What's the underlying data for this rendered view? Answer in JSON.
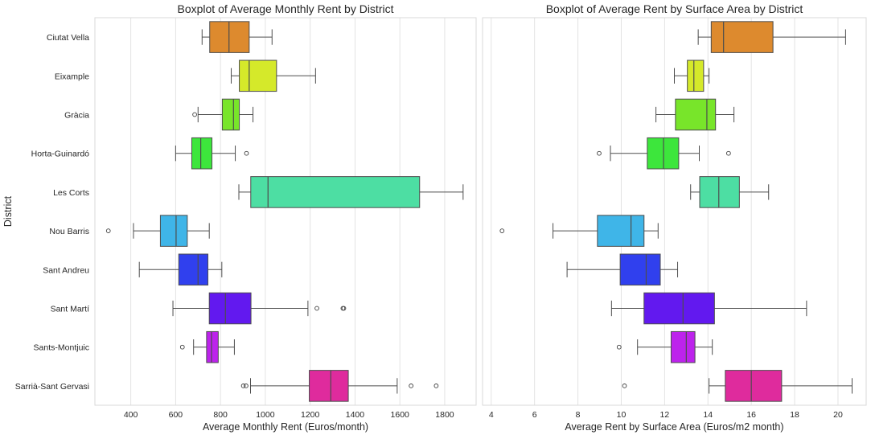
{
  "chart_data": [
    {
      "type": "boxplot",
      "title": "Boxplot of Average Monthly Rent by District",
      "xlabel": "Average Monthly Rent (Euros/month)",
      "ylabel": "District",
      "xlim": [
        240,
        1940
      ],
      "xticks": [
        400,
        600,
        800,
        1000,
        1200,
        1400,
        1600,
        1800
      ],
      "grid": "vertical",
      "categories": [
        "Ciutat Vella",
        "Eixample",
        "Gràcia",
        "Horta-Guinardó",
        "Les Corts",
        "Nou Barris",
        "Sant Andreu",
        "Sant Martí",
        "Sants-Montjuic",
        "Sarrià-Sant Gervasi"
      ],
      "colors": [
        "#dd8a2e",
        "#d5e92a",
        "#78e52a",
        "#3de63c",
        "#4ddea3",
        "#3fb5e8",
        "#3040ee",
        "#6219ef",
        "#bd23ec",
        "#df2b9d"
      ],
      "boxes": [
        {
          "whisker_low": 718,
          "q1": 752,
          "median": 838,
          "q3": 928,
          "whisker_high": 1030,
          "outliers": []
        },
        {
          "whisker_low": 848,
          "q1": 884,
          "median": 928,
          "q3": 1050,
          "whisker_high": 1224,
          "outliers": []
        },
        {
          "whisker_low": 700,
          "q1": 808,
          "median": 858,
          "q3": 884,
          "whisker_high": 945,
          "outliers": [
            685
          ]
        },
        {
          "whisker_low": 600,
          "q1": 672,
          "median": 712,
          "q3": 762,
          "whisker_high": 866,
          "outliers": [
            916
          ]
        },
        {
          "whisker_low": 882,
          "q1": 935,
          "median": 1012,
          "q3": 1688,
          "whisker_high": 1882,
          "outliers": []
        },
        {
          "whisker_low": 412,
          "q1": 532,
          "median": 602,
          "q3": 652,
          "whisker_high": 750,
          "outliers": [
            300
          ]
        },
        {
          "whisker_low": 438,
          "q1": 614,
          "median": 700,
          "q3": 744,
          "whisker_high": 806,
          "outliers": []
        },
        {
          "whisker_low": 588,
          "q1": 750,
          "median": 822,
          "q3": 936,
          "whisker_high": 1190,
          "outliers": [
            1230,
            1346,
            1350
          ]
        },
        {
          "whisker_low": 680,
          "q1": 738,
          "median": 760,
          "q3": 790,
          "whisker_high": 862,
          "outliers": [
            630
          ]
        },
        {
          "whisker_low": 934,
          "q1": 1196,
          "median": 1292,
          "q3": 1370,
          "whisker_high": 1588,
          "outliers": [
            902,
            914,
            1650,
            1762
          ]
        }
      ]
    },
    {
      "type": "boxplot",
      "title": "Boxplot of Average Rent by Surface Area by District",
      "xlabel": "Average Rent by Surface Area (Euros/m2 month)",
      "ylabel": "",
      "xlim": [
        3.6,
        21.3
      ],
      "xticks": [
        4,
        6,
        8,
        10,
        12,
        14,
        16,
        18,
        20
      ],
      "grid": "vertical",
      "categories": [
        "Ciutat Vella",
        "Eixample",
        "Gràcia",
        "Horta-Guinardó",
        "Les Corts",
        "Nou Barris",
        "Sant Andreu",
        "Sant Martí",
        "Sants-Montjuic",
        "Sarrià-Sant Gervasi"
      ],
      "colors": [
        "#dd8a2e",
        "#d5e92a",
        "#78e52a",
        "#3de63c",
        "#4ddea3",
        "#3fb5e8",
        "#3040ee",
        "#6219ef",
        "#bd23ec",
        "#df2b9d"
      ],
      "boxes": [
        {
          "whisker_low": 13.55,
          "q1": 14.15,
          "median": 14.72,
          "q3": 17.0,
          "whisker_high": 20.35,
          "outliers": []
        },
        {
          "whisker_low": 12.45,
          "q1": 13.05,
          "median": 13.35,
          "q3": 13.8,
          "whisker_high": 14.05,
          "outliers": []
        },
        {
          "whisker_low": 11.6,
          "q1": 12.5,
          "median": 13.95,
          "q3": 14.35,
          "whisker_high": 15.2,
          "outliers": []
        },
        {
          "whisker_low": 9.5,
          "q1": 11.2,
          "median": 11.95,
          "q3": 12.65,
          "whisker_high": 13.6,
          "outliers": [
            8.98,
            14.95
          ]
        },
        {
          "whisker_low": 13.2,
          "q1": 13.62,
          "median": 14.5,
          "q3": 15.45,
          "whisker_high": 16.8,
          "outliers": []
        },
        {
          "whisker_low": 6.85,
          "q1": 8.9,
          "median": 10.45,
          "q3": 11.05,
          "whisker_high": 11.7,
          "outliers": [
            4.5
          ]
        },
        {
          "whisker_low": 7.5,
          "q1": 9.95,
          "median": 11.15,
          "q3": 11.8,
          "whisker_high": 12.6,
          "outliers": []
        },
        {
          "whisker_low": 9.55,
          "q1": 11.05,
          "median": 12.85,
          "q3": 14.3,
          "whisker_high": 18.55,
          "outliers": []
        },
        {
          "whisker_low": 10.75,
          "q1": 12.3,
          "median": 13.0,
          "q3": 13.4,
          "whisker_high": 14.2,
          "outliers": [
            9.9
          ]
        },
        {
          "whisker_low": 14.05,
          "q1": 14.8,
          "median": 16.0,
          "q3": 17.4,
          "whisker_high": 20.65,
          "outliers": [
            10.15
          ]
        }
      ]
    }
  ]
}
